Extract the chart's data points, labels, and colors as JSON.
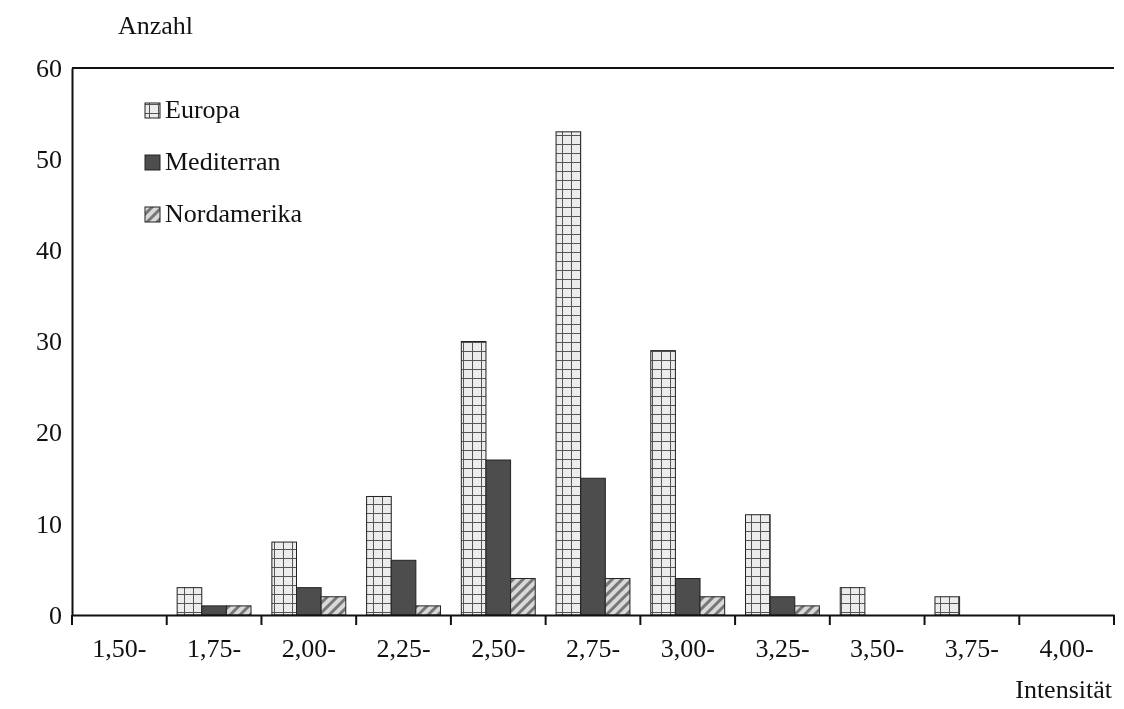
{
  "chart_data": {
    "type": "bar",
    "ylabel": "Anzahl",
    "xlabel": "Intensität",
    "categories": [
      "1,50-",
      "1,75-",
      "2,00-",
      "2,25-",
      "2,50-",
      "2,75-",
      "3,00-",
      "3,25-",
      "3,50-",
      "3,75-",
      "4,00-"
    ],
    "series": [
      {
        "name": "Europa",
        "color": "#ececec",
        "values": [
          0,
          3,
          8,
          13,
          30,
          53,
          29,
          11,
          3,
          2,
          0
        ]
      },
      {
        "name": "Mediterran",
        "color": "#4d4d4d",
        "values": [
          0,
          1,
          3,
          6,
          17,
          15,
          4,
          2,
          0,
          0,
          0
        ]
      },
      {
        "name": "Nordamerika",
        "color": "#d9d9d9",
        "values": [
          0,
          1,
          2,
          1,
          4,
          4,
          2,
          1,
          0,
          0,
          0
        ]
      }
    ],
    "ylim": [
      0,
      60
    ],
    "yticks": [
      0,
      10,
      20,
      30,
      40,
      50,
      60
    ],
    "grid": false,
    "legend": "top left"
  }
}
